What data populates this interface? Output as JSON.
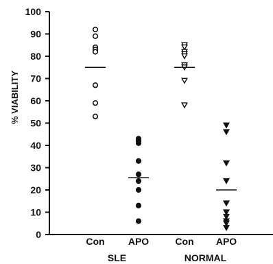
{
  "chart_data": {
    "type": "scatter",
    "ylabel": "% VIABILITY",
    "ylim": [
      0,
      100
    ],
    "yticks": [
      "0",
      "10",
      "20",
      "30",
      "40",
      "50",
      "60",
      "70",
      "80",
      "90",
      "100"
    ],
    "categories": [
      "Con",
      "APO",
      "Con",
      "APO"
    ],
    "groups": [
      {
        "label": "SLE",
        "categories": [
          0,
          1
        ]
      },
      {
        "label": "NORMAL",
        "categories": [
          2,
          3
        ]
      }
    ],
    "series": [
      {
        "category": "Con",
        "group": "SLE",
        "marker": "open-circle",
        "mean": 75,
        "values": [
          92,
          89,
          84,
          83,
          82,
          67,
          59,
          53
        ]
      },
      {
        "category": "APO",
        "group": "SLE",
        "marker": "filled-circle",
        "mean": 25.5,
        "values": [
          43,
          42,
          41,
          33,
          27,
          24,
          20,
          13,
          6
        ]
      },
      {
        "category": "Con",
        "group": "NORMAL",
        "marker": "open-triangle-down",
        "mean": 75,
        "values": [
          85,
          84,
          82,
          81,
          80,
          76,
          75,
          69,
          58
        ]
      },
      {
        "category": "APO",
        "group": "NORMAL",
        "marker": "filled-triangle-down",
        "mean": 20,
        "values": [
          49,
          46,
          32,
          24,
          14,
          10,
          8,
          6,
          5,
          3
        ]
      }
    ]
  }
}
